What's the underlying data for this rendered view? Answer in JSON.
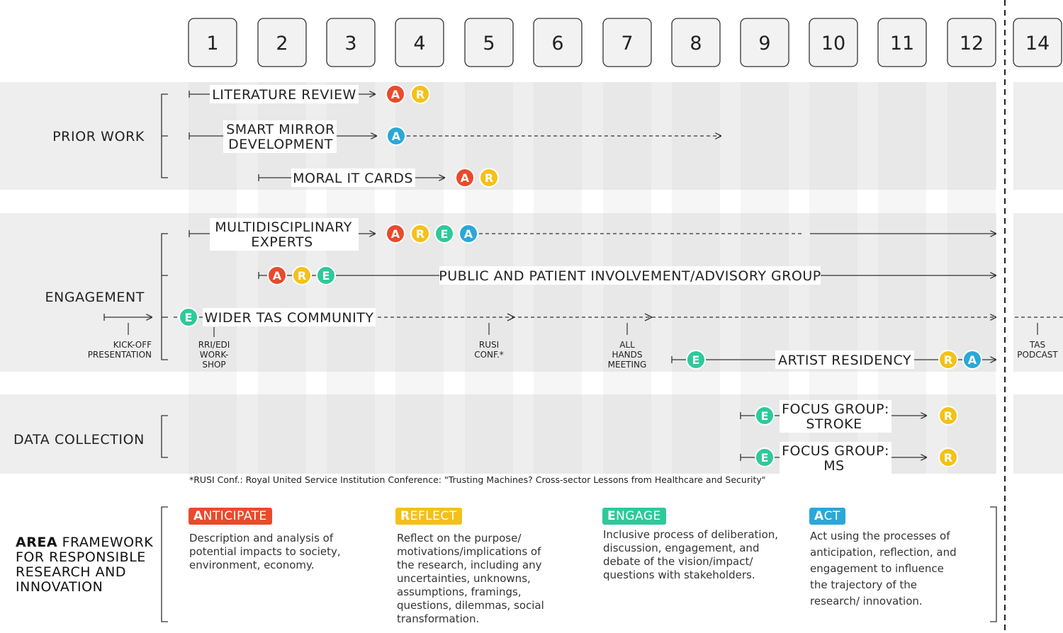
{
  "months": [
    "1",
    "2",
    "3",
    "4",
    "5",
    "6",
    "7",
    "8",
    "9",
    "10",
    "11",
    "12",
    "14"
  ],
  "sections": {
    "prior_work": "PRIOR WORK",
    "engagement": "ENGAGEMENT",
    "data_collection": "DATA COLLECTION"
  },
  "activities": {
    "literature_review": "LITERATURE REVIEW",
    "smart_mirror_1": "SMART MIRROR",
    "smart_mirror_2": "DEVELOPMENT",
    "moral_it_cards": "MORAL IT CARDS",
    "multidisciplinary_1": "MULTIDISCIPLINARY",
    "multidisciplinary_2": "EXPERTS",
    "public_patient": "PUBLIC AND PATIENT INVOLVEMENT/ADVISORY GROUP",
    "wider_tas": "WIDER TAS COMMUNITY",
    "artist_residency": "ARTIST RESIDENCY",
    "focus_stroke_1": "FOCUS GROUP:",
    "focus_stroke_2": "STROKE",
    "focus_ms_1": "FOCUS GROUP:",
    "focus_ms_2": "MS"
  },
  "events": {
    "kickoff_1": "KICK-OFF",
    "kickoff_2": "PRESENTATION",
    "rri_1": "RRI/EDI",
    "rri_2": "WORK-",
    "rri_3": "SHOP",
    "rusi_1": "RUSI",
    "rusi_2": "CONF.*",
    "allhands_1": "ALL",
    "allhands_2": "HANDS",
    "allhands_3": "MEETING",
    "tas_1": "TAS",
    "tas_2": "PODCAST"
  },
  "badge_letters": {
    "anticipate": "A",
    "reflect": "R",
    "engage": "E",
    "act": "A"
  },
  "footnote": "*RUSI Conf.: Royal United Service Institution Conference: \"Trusting Machines? Cross-sector Lessons from Healthcare and Security\"",
  "framework": {
    "title_bold": "AREA",
    "title_rest_1": " FRAMEWORK",
    "title_rest_2": "FOR RESPONSIBLE",
    "title_rest_3": "RESEARCH AND",
    "title_rest_4": "INNOVATION",
    "anticipate": {
      "initial": "A",
      "rest": "NTICIPATE",
      "desc": "Description and analysis of potential impacts to society, environment, economy."
    },
    "reflect": {
      "initial": "R",
      "rest": "EFLECT",
      "desc": "Reflect on the purpose/ motivations/implications of the research, including any uncertainties, unknowns, assumptions, framings, questions, dilemmas, social transformation."
    },
    "engage": {
      "initial": "E",
      "rest": "NGAGE",
      "desc": "Inclusive process of deliberation, discussion, engagement, and debate of the vision/impact/ questions with stakeholders."
    },
    "act": {
      "initial": "A",
      "rest": "CT",
      "desc": "Act using the processes of anticipation, reflection, and engagement to influence the trajectory of the research/ innovation."
    }
  },
  "colors": {
    "anticipate": "#ea4a2b",
    "reflect": "#f4c11a",
    "engage": "#2ec99a",
    "act": "#2aa8d8",
    "band": "#eeeeee",
    "stripe": "#e4e4e4",
    "line": "#333333"
  }
}
